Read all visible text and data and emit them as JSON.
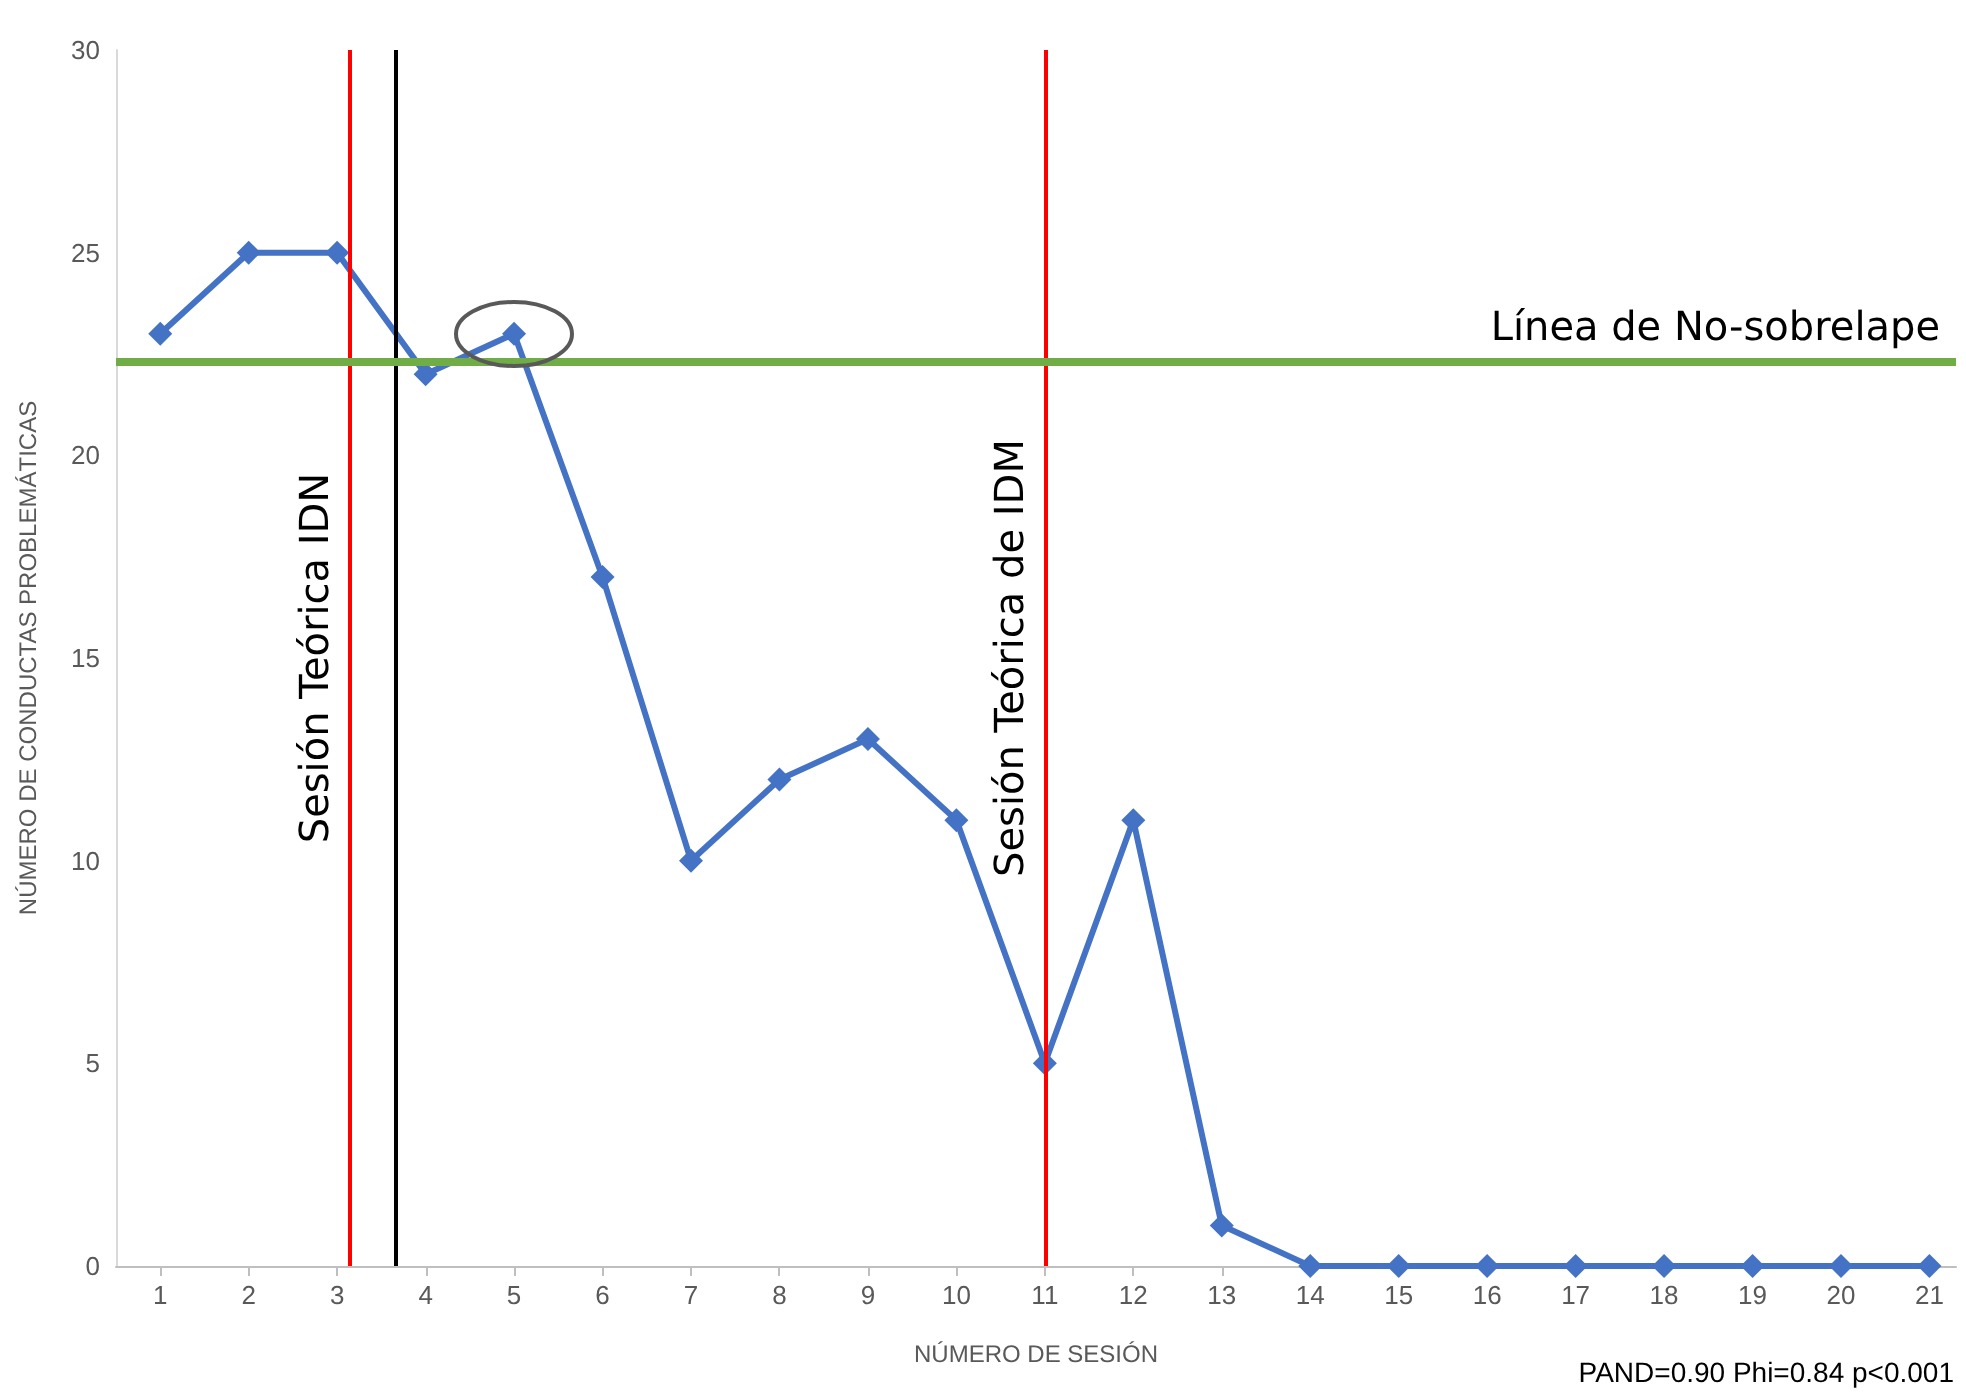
{
  "chart_data": {
    "type": "line",
    "xlabel": "NÚMERO DE SESIÓN",
    "ylabel": "NÚMERO DE CONDUCTAS PROBLEMÁTICAS",
    "x": [
      1,
      2,
      3,
      4,
      5,
      6,
      7,
      8,
      9,
      10,
      11,
      12,
      13,
      14,
      15,
      16,
      17,
      18,
      19,
      20,
      21
    ],
    "series": [
      {
        "color": "#4472c4",
        "values": [
          23,
          25,
          25,
          22,
          23,
          17,
          10,
          12,
          13,
          11,
          5,
          11,
          1,
          0,
          0,
          0,
          0,
          0,
          0,
          0,
          0
        ]
      }
    ],
    "xlim": [
      0.5,
      21.3
    ],
    "xticks": [
      1,
      2,
      3,
      4,
      5,
      6,
      7,
      8,
      9,
      10,
      11,
      12,
      13,
      14,
      15,
      16,
      17,
      18,
      19,
      20,
      21
    ],
    "ylim": [
      0,
      30
    ],
    "yticks": [
      0,
      5,
      10,
      15,
      20,
      25,
      30
    ],
    "ref_lines": [
      {
        "axis": "x",
        "value": 3.15,
        "label": "Sesión Teórica IDN",
        "color": "#ff0000"
      },
      {
        "axis": "x",
        "value": 3.65,
        "label": null,
        "color": "#000000"
      },
      {
        "axis": "x",
        "value": 11,
        "label": "Sesión Teórica de IDM",
        "color": "#ff0000"
      },
      {
        "axis": "y",
        "value": 22.3,
        "label": "Línea de No-sobrelape",
        "color": "#70ad47"
      }
    ],
    "annotations": [
      "PAND=0.90 Phi=0.84 p<0.001"
    ],
    "grid": false,
    "marker": "diamond",
    "line_style": "solid"
  }
}
